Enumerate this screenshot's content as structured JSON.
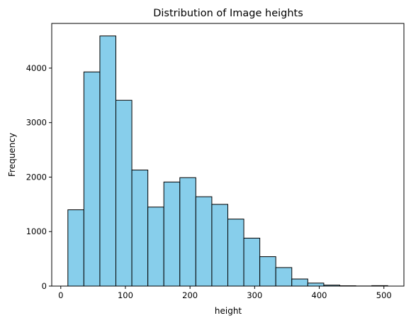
{
  "chart_data": {
    "type": "bar",
    "title": "Distribution of Image heights",
    "xlabel": "height",
    "ylabel": "Frequency",
    "bins": {
      "start": 11,
      "end": 506,
      "edges": [
        11,
        35.75,
        60.5,
        85.25,
        110,
        134.75,
        159.5,
        184.25,
        209,
        233.75,
        258.5,
        283.25,
        308,
        332.75,
        357.5,
        382.25,
        407,
        431.75,
        456.5,
        481.25,
        506
      ],
      "values": [
        1400,
        3930,
        4590,
        3410,
        2130,
        1450,
        1910,
        1990,
        1640,
        1500,
        1230,
        880,
        540,
        340,
        130,
        55,
        18,
        6,
        2,
        8
      ]
    },
    "xlim": [
      -14,
      531
    ],
    "ylim": [
      0,
      4820
    ],
    "xticks": [
      0,
      100,
      200,
      300,
      400,
      500
    ],
    "yticks": [
      0,
      1000,
      2000,
      3000,
      4000
    ],
    "colors": {
      "bar_fill": "#87ceeb",
      "bar_edge": "#000000"
    },
    "grid": false
  }
}
